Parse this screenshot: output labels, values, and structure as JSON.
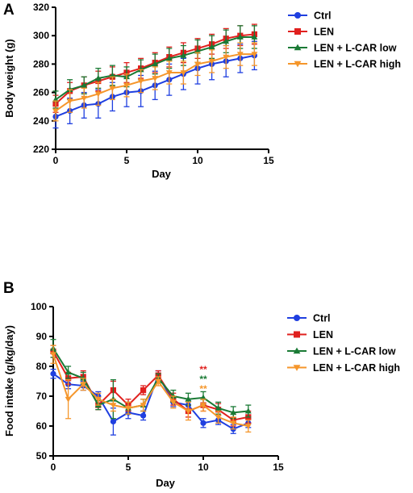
{
  "chart_data": [
    {
      "type": "line",
      "panel_label": "A",
      "xlabel": "Day",
      "ylabel": "Body weight (g)",
      "xlim": [
        0,
        15
      ],
      "ylim": [
        220,
        320
      ],
      "xticks": [
        0,
        5,
        10,
        15
      ],
      "yticks": [
        220,
        240,
        260,
        280,
        300,
        320
      ],
      "grid": false,
      "legend_position": "top-right",
      "x": [
        0,
        1,
        2,
        3,
        4,
        5,
        6,
        7,
        8,
        9,
        10,
        11,
        12,
        13,
        14
      ],
      "series": [
        {
          "name": "Ctrl",
          "color": "#1f3fe0",
          "marker": "circle",
          "values": [
            243,
            247,
            251,
            252,
            257,
            260,
            261,
            265,
            269,
            273,
            277,
            280,
            282,
            284,
            286
          ],
          "errors": [
            8,
            9,
            9,
            10,
            10,
            10,
            11,
            10,
            11,
            11,
            11,
            11,
            11,
            10,
            10
          ]
        },
        {
          "name": "LEN",
          "color": "#e0201e",
          "marker": "square",
          "values": [
            252,
            261,
            265,
            268,
            271,
            274,
            277,
            281,
            285,
            288,
            291,
            294,
            298,
            300,
            301
          ],
          "errors": [
            6,
            6,
            6,
            7,
            7,
            7,
            7,
            7,
            7,
            7,
            7,
            7,
            7,
            7,
            7
          ]
        },
        {
          "name": "LEN + L-CAR low",
          "color": "#1a7a35",
          "marker": "triangle-up",
          "values": [
            255,
            262,
            265,
            270,
            272,
            271,
            276,
            280,
            284,
            286,
            289,
            292,
            296,
            299,
            299
          ],
          "errors": [
            6,
            7,
            6,
            7,
            7,
            7,
            7,
            7,
            7,
            7,
            8,
            8,
            8,
            8,
            8
          ]
        },
        {
          "name": "LEN + L-CAR high",
          "color": "#f5962b",
          "marker": "triangle-down",
          "values": [
            247,
            254,
            256,
            259,
            263,
            265,
            268,
            270,
            274,
            274,
            280,
            282,
            285,
            287,
            287
          ],
          "errors": [
            7,
            8,
            7,
            8,
            8,
            8,
            8,
            8,
            8,
            8,
            8,
            8,
            8,
            8,
            8
          ]
        }
      ]
    },
    {
      "type": "line",
      "panel_label": "B",
      "xlabel": "Day",
      "ylabel": "Food intake (g/kg/day)",
      "xlim": [
        0,
        15
      ],
      "ylim": [
        50,
        100
      ],
      "xticks": [
        0,
        5,
        10,
        15
      ],
      "yticks": [
        50,
        60,
        70,
        80,
        90,
        100
      ],
      "grid": false,
      "legend_position": "right",
      "x": [
        0,
        1,
        2,
        3,
        4,
        5,
        6,
        7,
        8,
        9,
        10,
        11,
        12,
        13
      ],
      "series": [
        {
          "name": "Ctrl",
          "color": "#1f3fe0",
          "marker": "circle",
          "values": [
            77.5,
            74,
            73.5,
            70,
            61.5,
            64.5,
            63.5,
            77,
            68,
            67,
            61,
            62,
            59,
            61
          ],
          "errors": [
            1.5,
            1.5,
            1.5,
            1.5,
            4.5,
            2,
            1.5,
            1.5,
            1.5,
            1.5,
            1.5,
            1.5,
            1.5,
            1.5
          ]
        },
        {
          "name": "LEN",
          "color": "#e0201e",
          "marker": "square",
          "values": [
            85,
            76,
            76.5,
            67,
            72,
            67,
            72,
            77,
            69,
            65,
            67,
            65.5,
            62,
            63
          ],
          "errors": [
            2,
            2,
            2,
            1.5,
            3,
            2,
            1.5,
            1.5,
            2,
            2,
            2,
            2,
            2,
            2
          ]
        },
        {
          "name": "LEN + L-CAR low",
          "color": "#1a7a35",
          "marker": "triangle-up",
          "values": [
            86,
            78,
            76,
            67,
            69,
            66,
            67,
            76,
            70,
            69,
            69.5,
            66,
            64.5,
            65
          ],
          "errors": [
            3,
            2,
            2,
            1.5,
            6.5,
            2,
            2,
            1.5,
            2,
            2,
            2,
            2,
            2,
            2
          ]
        },
        {
          "name": "LEN + L-CAR high",
          "color": "#f5962b",
          "marker": "triangle-down",
          "values": [
            84,
            69,
            74,
            69,
            67,
            66,
            67,
            75,
            68,
            65,
            67,
            63,
            61,
            60
          ],
          "errors": [
            3,
            6.5,
            2,
            2,
            2,
            2,
            2,
            1.5,
            2,
            3,
            2,
            2,
            2,
            2
          ]
        }
      ],
      "annotations": [
        {
          "text": "**",
          "x": 10,
          "color": "#e0201e"
        },
        {
          "text": "**",
          "x": 10,
          "color": "#1a7a35"
        },
        {
          "text": "**",
          "x": 10,
          "color": "#f5962b"
        }
      ]
    }
  ]
}
